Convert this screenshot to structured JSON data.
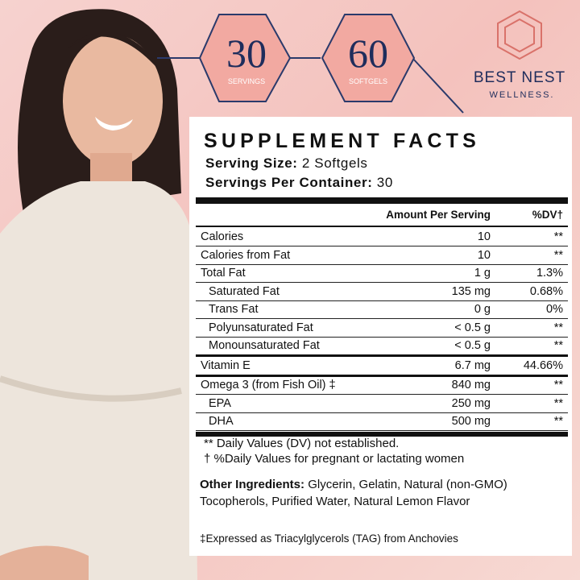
{
  "badges": [
    {
      "number": "30",
      "label": "SERVINGS"
    },
    {
      "number": "60",
      "label": "SOFTGELS"
    }
  ],
  "brand": {
    "name": "BEST NEST",
    "tagline": "WELLNESS."
  },
  "facts": {
    "title": "SUPPLEMENT FACTS",
    "serving_size_label": "Serving Size:",
    "serving_size": "2 Softgels",
    "servings_label": "Servings Per Container:",
    "servings": "30",
    "header": [
      "Amount Per Serving",
      "%DV†"
    ],
    "rows": [
      [
        "Calories",
        "10",
        "**"
      ],
      [
        "Calories from Fat",
        "10",
        "**"
      ],
      [
        "Total Fat",
        "1 g",
        "1.3%"
      ],
      [
        "Saturated Fat",
        "135 mg",
        "0.68%"
      ],
      [
        "Trans Fat",
        "0 g",
        "0%"
      ],
      [
        "Polyunsaturated Fat",
        "< 0.5 g",
        "**"
      ],
      [
        "Monounsaturated Fat",
        "< 0.5 g",
        "**"
      ],
      [
        "Vitamin E",
        "6.7 mg",
        "44.66%"
      ],
      [
        "Omega 3 (from Fish Oil) ‡",
        "840 mg",
        "**"
      ],
      [
        "EPA",
        "250 mg",
        "**"
      ],
      [
        "DHA",
        "500 mg",
        "**"
      ]
    ],
    "footnotes": [
      "** Daily Values (DV) not established.",
      "† %Daily Values for pregnant or lactating women"
    ],
    "other_ingredients_label": "Other Ingredients:",
    "other_ingredients": "Glycerin, Gelatin, Natural (non-GMO) Tocopherols, Purified Water, Natural Lemon Flavor",
    "source_note": "‡Expressed as Triacylglycerols (TAG) from Anchovies"
  }
}
